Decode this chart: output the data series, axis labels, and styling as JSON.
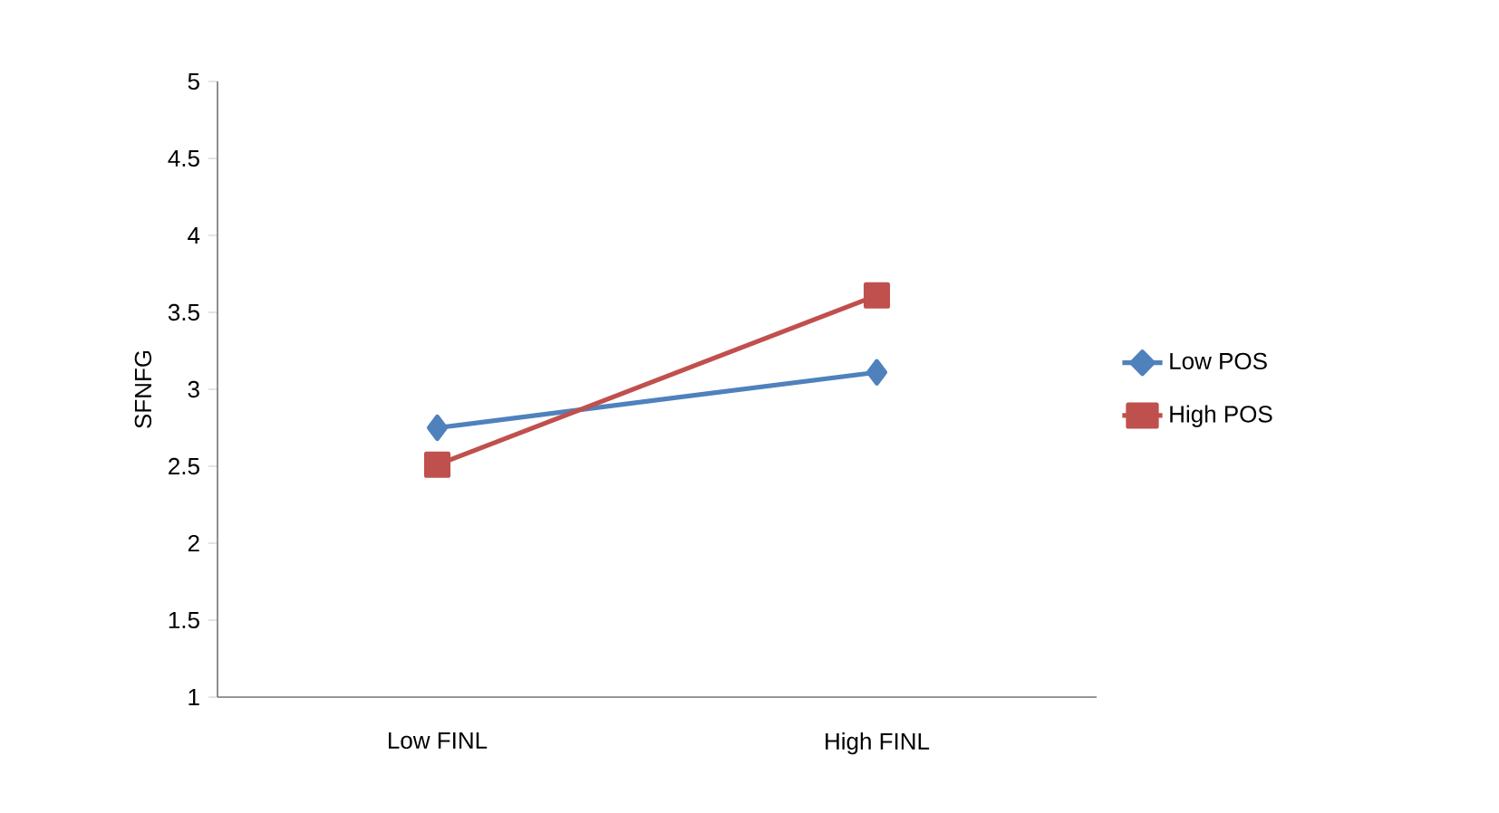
{
  "chart_data": {
    "type": "line",
    "ylabel": "SFNFG",
    "categories": [
      "Low FINL",
      "High FINL"
    ],
    "series": [
      {
        "name": "Low POS",
        "color": "#4f81bd",
        "marker": "diamond",
        "values": [
          2.75,
          3.11
        ]
      },
      {
        "name": "High POS",
        "color": "#c0504d",
        "marker": "square",
        "values": [
          2.51,
          3.61
        ]
      }
    ],
    "ylim": [
      1,
      5
    ],
    "yticks": [
      1,
      1.5,
      2,
      2.5,
      3,
      3.5,
      4,
      4.5,
      5
    ],
    "grid": false,
    "legend": "right",
    "line_style": "solid"
  }
}
